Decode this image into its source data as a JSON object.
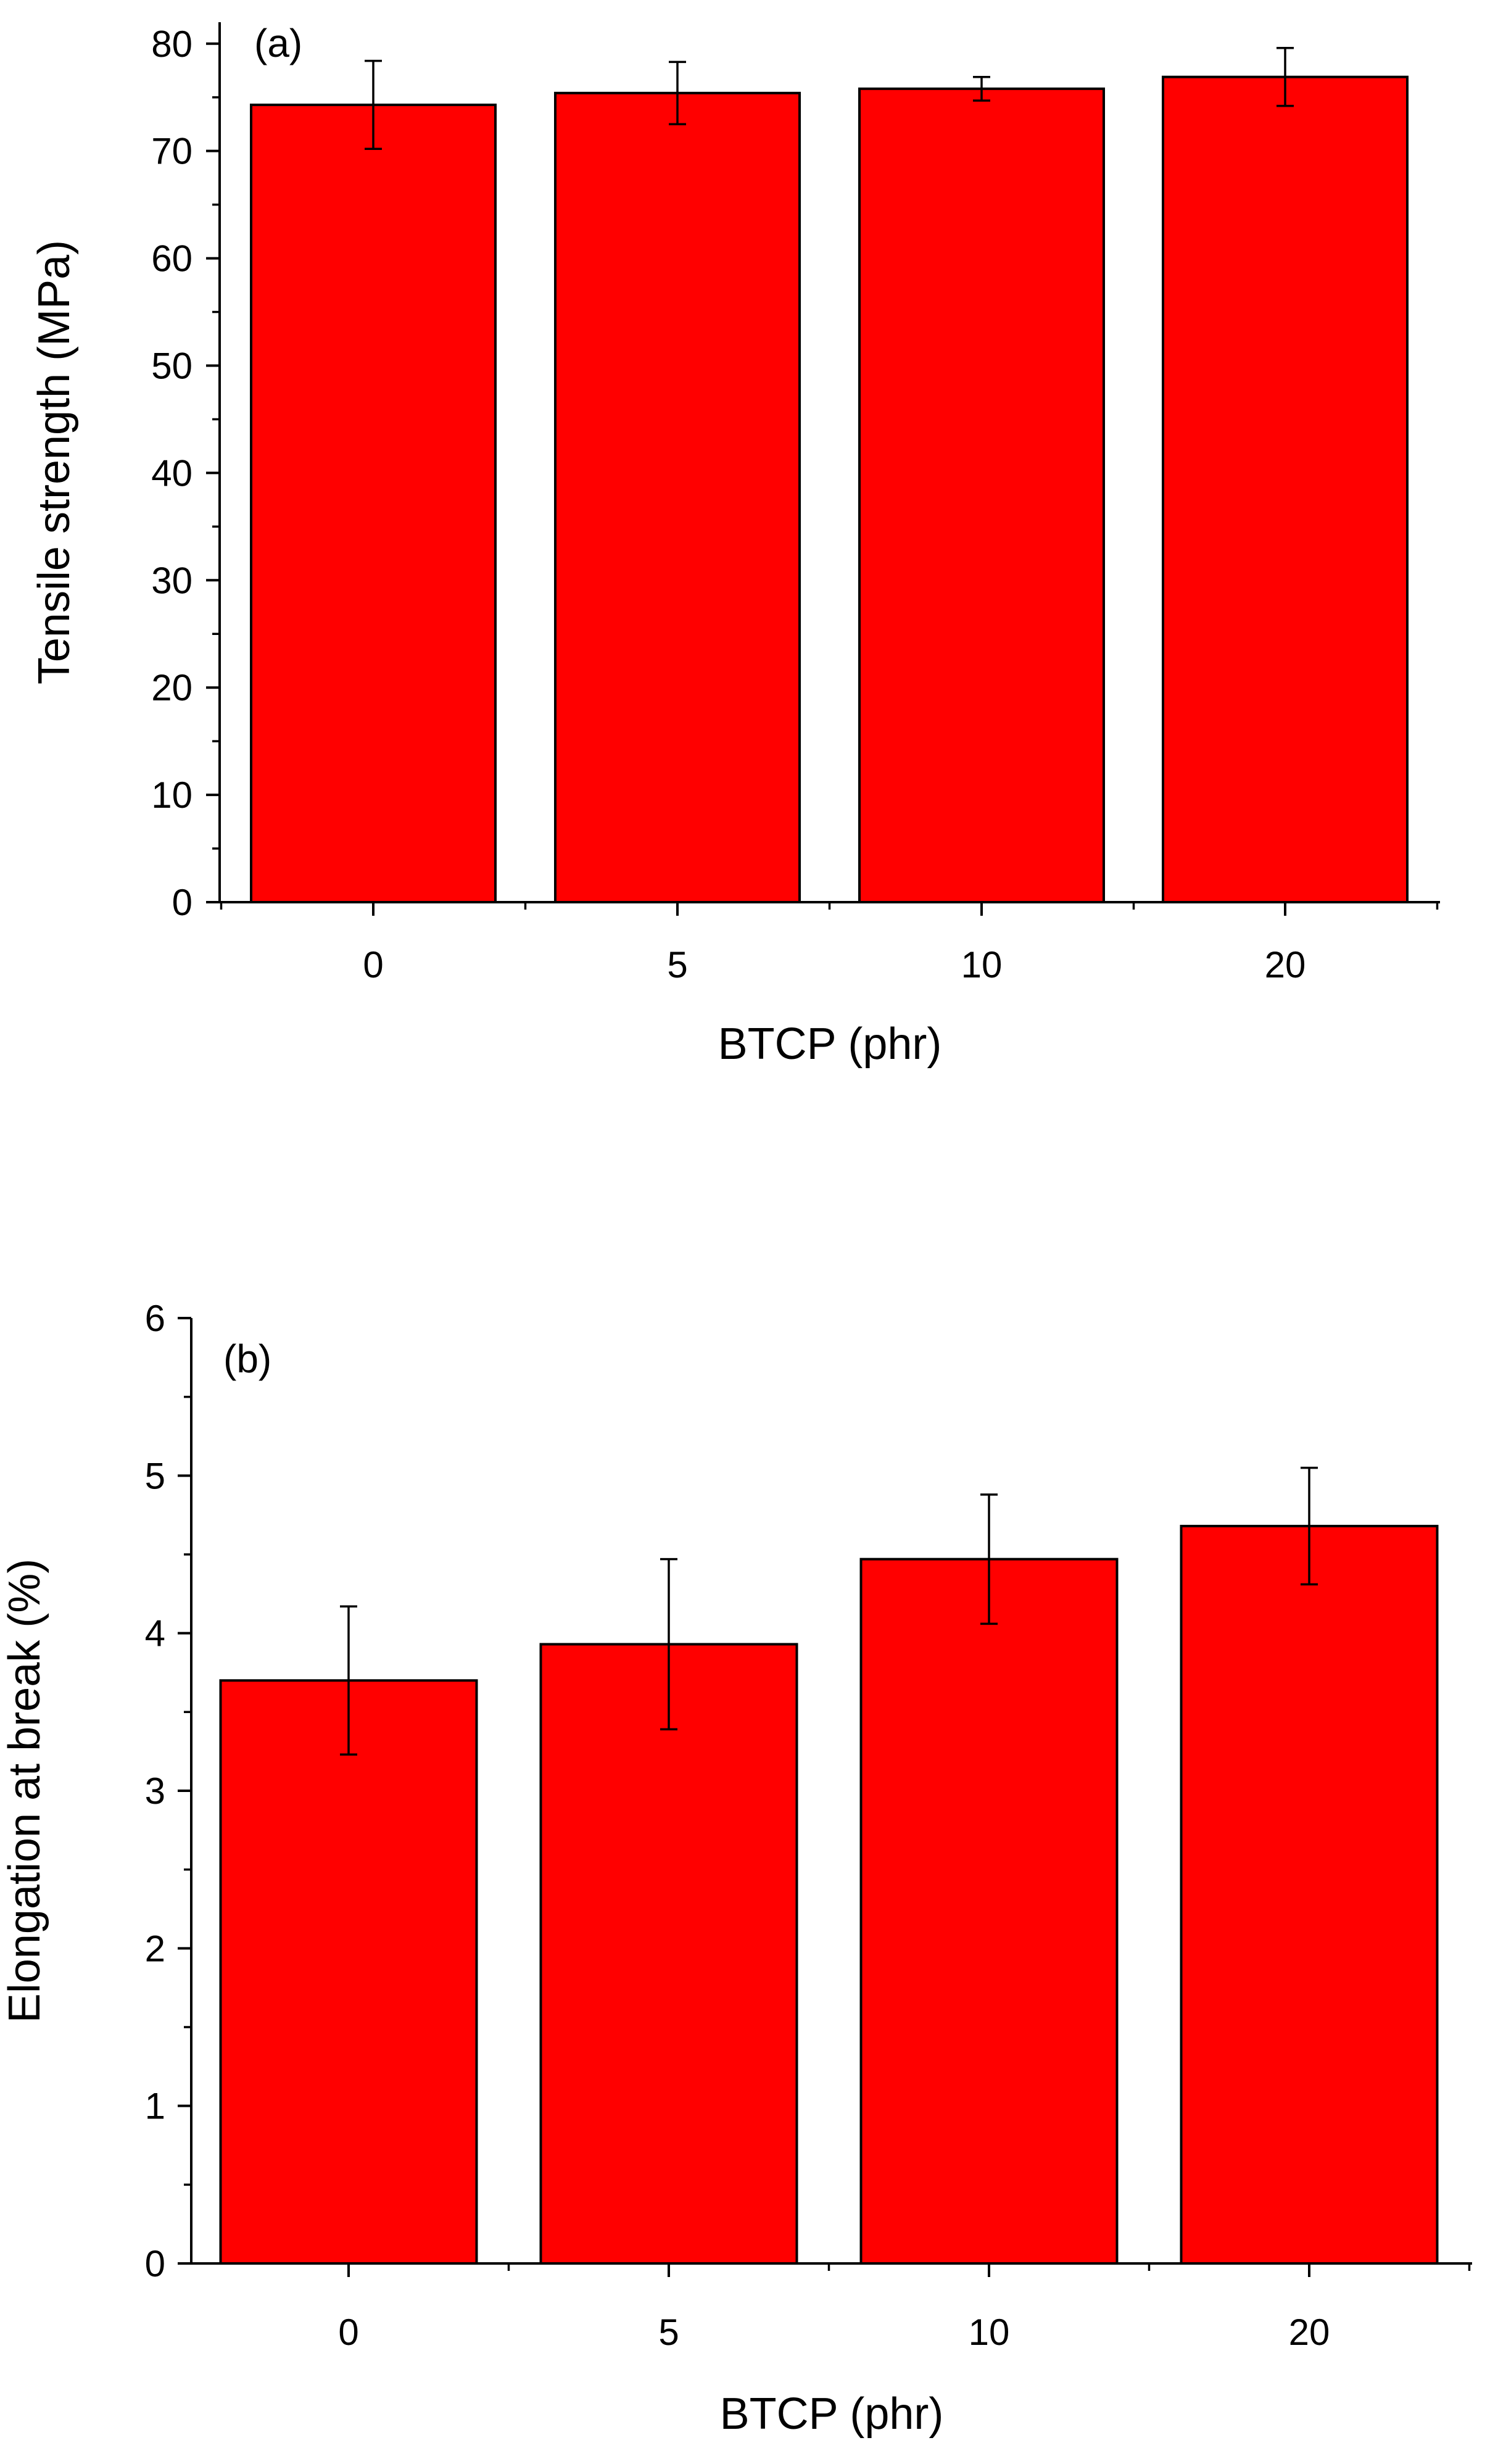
{
  "chart_data": [
    {
      "type": "bar",
      "panel_label": "(a)",
      "categories": [
        "0",
        "5",
        "10",
        "20"
      ],
      "values": [
        74.3,
        75.4,
        75.8,
        76.9
      ],
      "errors": [
        4.1,
        2.9,
        1.1,
        2.7
      ],
      "xlabel": "BTCP (phr)",
      "ylabel": "Tensile strength (MPa)",
      "ylim": [
        0,
        82
      ],
      "yticks": [
        0,
        10,
        20,
        30,
        40,
        50,
        60,
        70,
        80
      ],
      "bar_color": "#ff0000",
      "grid": false,
      "legend": "none"
    },
    {
      "type": "bar",
      "panel_label": "(b)",
      "categories": [
        "0",
        "5",
        "10",
        "20"
      ],
      "values": [
        3.7,
        3.93,
        4.47,
        4.68
      ],
      "errors": [
        0.47,
        0.54,
        0.41,
        0.37
      ],
      "xlabel": "BTCP (phr)",
      "ylabel": "Elongation at break (%)",
      "ylim": [
        0,
        6
      ],
      "yticks": [
        0,
        1,
        2,
        3,
        4,
        5,
        6
      ],
      "bar_color": "#ff0000",
      "grid": false,
      "legend": "none"
    }
  ]
}
